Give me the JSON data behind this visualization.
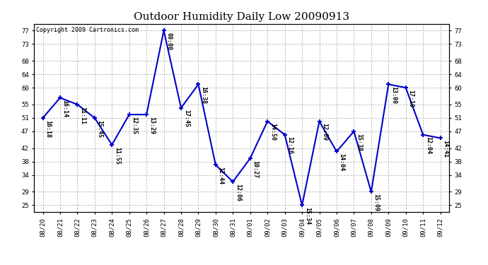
{
  "title": "Outdoor Humidity Daily Low 20090913",
  "copyright": "Copyright 2009 Cartronics.com",
  "line_color": "#0000CC",
  "bg_color": "#ffffff",
  "grid_color": "#bbbbbb",
  "dates": [
    "08/20",
    "08/21",
    "08/22",
    "08/23",
    "08/24",
    "08/25",
    "08/26",
    "08/27",
    "08/28",
    "08/29",
    "08/30",
    "08/31",
    "09/01",
    "09/02",
    "09/03",
    "09/04",
    "09/05",
    "09/06",
    "09/07",
    "09/08",
    "09/09",
    "09/10",
    "09/11",
    "09/12"
  ],
  "values": [
    51,
    57,
    55,
    51,
    43,
    52,
    52,
    77,
    54,
    61,
    37,
    32,
    39,
    50,
    46,
    25,
    50,
    41,
    47,
    29,
    61,
    60,
    46,
    45
  ],
  "times": [
    "16:18",
    "16:14",
    "11:11",
    "15:45",
    "11:55",
    "12:35",
    "13:29",
    "00:00",
    "17:45",
    "16:38",
    "12:44",
    "12:06",
    "10:27",
    "14:50",
    "12:16",
    "15:34",
    "12:09",
    "14:04",
    "15:38",
    "15:09",
    "13:00",
    "17:10",
    "12:04",
    "14:41"
  ],
  "yticks": [
    25,
    29,
    34,
    38,
    42,
    47,
    51,
    55,
    60,
    64,
    68,
    73,
    77
  ],
  "ylim": [
    23,
    79
  ],
  "title_fontsize": 11,
  "label_fontsize": 6,
  "tick_fontsize": 6.5,
  "copyright_fontsize": 6
}
